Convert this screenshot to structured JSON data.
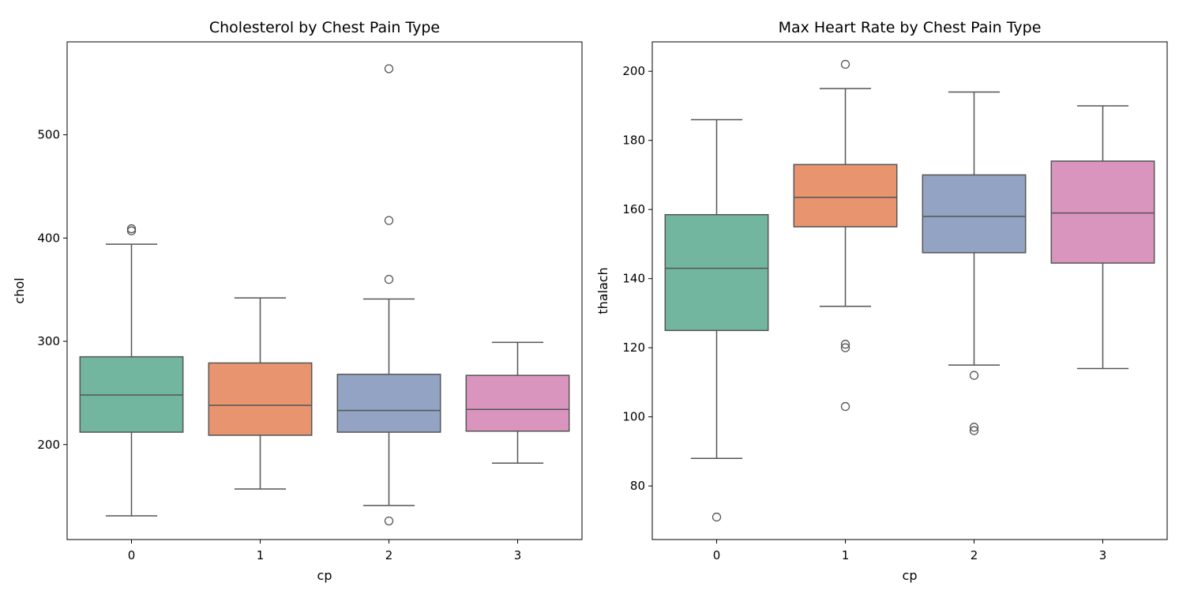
{
  "chart_data": [
    {
      "type": "box",
      "title": "Cholesterol by Chest Pain Type",
      "xlabel": "cp",
      "ylabel": "chol",
      "categories": [
        "0",
        "1",
        "2",
        "3"
      ],
      "ylim": [
        108,
        590
      ],
      "yticks": [
        200,
        300,
        400,
        500
      ],
      "grid": false,
      "legend": "none",
      "colors": [
        "#73b6a0",
        "#e8956f",
        "#93a3c3",
        "#da95be"
      ],
      "boxes": [
        {
          "category": "0",
          "whisker_low": 131,
          "q1": 212,
          "median": 248,
          "q3": 285,
          "whisker_high": 394,
          "outliers": [
            407,
            409
          ]
        },
        {
          "category": "1",
          "whisker_low": 157,
          "q1": 209,
          "median": 238,
          "q3": 279,
          "whisker_high": 342,
          "outliers": []
        },
        {
          "category": "2",
          "whisker_low": 141,
          "q1": 212,
          "median": 233,
          "q3": 268,
          "whisker_high": 341,
          "outliers": [
            126,
            360,
            417,
            564
          ]
        },
        {
          "category": "3",
          "whisker_low": 182,
          "q1": 213,
          "median": 234,
          "q3": 267,
          "whisker_high": 299,
          "outliers": []
        }
      ]
    },
    {
      "type": "box",
      "title": "Max Heart Rate by Chest Pain Type",
      "xlabel": "cp",
      "ylabel": "thalach",
      "categories": [
        "0",
        "1",
        "2",
        "3"
      ],
      "ylim": [
        64.5,
        208.5
      ],
      "yticks": [
        80,
        100,
        120,
        140,
        160,
        180,
        200
      ],
      "grid": false,
      "legend": "none",
      "colors": [
        "#73b6a0",
        "#e8956f",
        "#93a3c3",
        "#da95be"
      ],
      "boxes": [
        {
          "category": "0",
          "whisker_low": 88,
          "q1": 125,
          "median": 143,
          "q3": 158.5,
          "whisker_high": 186,
          "outliers": [
            71
          ]
        },
        {
          "category": "1",
          "whisker_low": 132,
          "q1": 155,
          "median": 163.5,
          "q3": 173,
          "whisker_high": 195,
          "outliers": [
            103,
            120,
            121,
            202
          ]
        },
        {
          "category": "2",
          "whisker_low": 115,
          "q1": 147.5,
          "median": 158,
          "q3": 170,
          "whisker_high": 194,
          "outliers": [
            96,
            97,
            112
          ]
        },
        {
          "category": "3",
          "whisker_low": 114,
          "q1": 144.5,
          "median": 159,
          "q3": 174,
          "whisker_high": 190,
          "outliers": []
        }
      ]
    }
  ]
}
